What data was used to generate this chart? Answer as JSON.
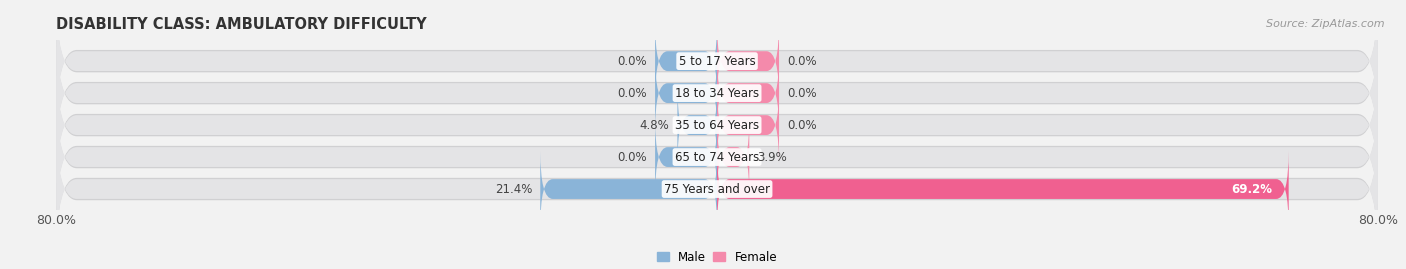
{
  "title": "DISABILITY CLASS: AMBULATORY DIFFICULTY",
  "source": "Source: ZipAtlas.com",
  "categories": [
    "5 to 17 Years",
    "18 to 34 Years",
    "35 to 64 Years",
    "65 to 74 Years",
    "75 Years and over"
  ],
  "male_values": [
    0.0,
    0.0,
    4.8,
    0.0,
    21.4
  ],
  "female_values": [
    0.0,
    0.0,
    0.0,
    3.9,
    69.2
  ],
  "x_min": -80.0,
  "x_max": 80.0,
  "male_color": "#8ab4d8",
  "female_color": "#f48aab",
  "female_color_large": "#f06090",
  "male_label": "Male",
  "female_label": "Female",
  "bar_bg_color": "#e4e4e6",
  "bar_bg_shadow": "#d0d0d2",
  "bar_height": 0.62,
  "title_fontsize": 10.5,
  "tick_fontsize": 9,
  "label_fontsize": 8.5,
  "category_fontsize": 8.5,
  "source_fontsize": 8,
  "small_bar_width": 7.5
}
